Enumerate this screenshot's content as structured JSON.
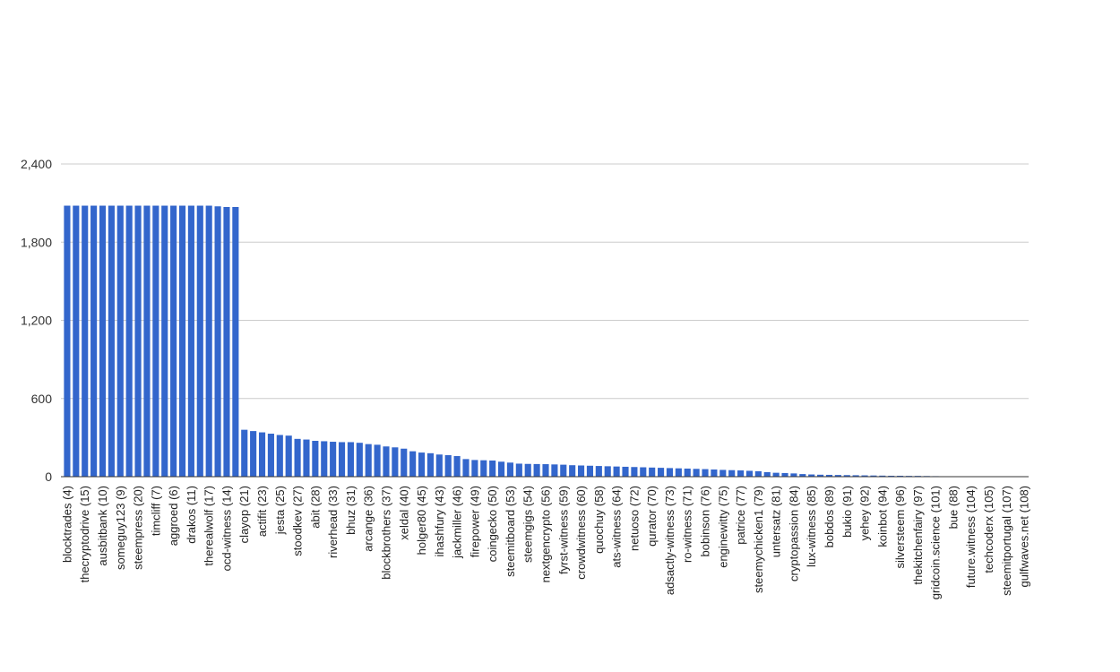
{
  "chart_data": {
    "type": "bar",
    "ylim": [
      0,
      2400
    ],
    "y_ticks": [
      0,
      600,
      1200,
      1800,
      2400
    ],
    "y_tick_labels": [
      "0",
      "600",
      "1,200",
      "1,800",
      "2,400"
    ],
    "grid": true,
    "legend": "none",
    "bar_color": "#3366cc",
    "categories": [
      {
        "label": "blocktrades (4)",
        "value": 2080,
        "show_label": true
      },
      {
        "label": "",
        "value": 2080,
        "show_label": false
      },
      {
        "label": "thecryptodrive (15)",
        "value": 2080,
        "show_label": true
      },
      {
        "label": "",
        "value": 2080,
        "show_label": false
      },
      {
        "label": "ausbitbank (10)",
        "value": 2080,
        "show_label": true
      },
      {
        "label": "",
        "value": 2080,
        "show_label": false
      },
      {
        "label": "someguy123 (9)",
        "value": 2080,
        "show_label": true
      },
      {
        "label": "",
        "value": 2080,
        "show_label": false
      },
      {
        "label": "steempress (20)",
        "value": 2080,
        "show_label": true
      },
      {
        "label": "",
        "value": 2080,
        "show_label": false
      },
      {
        "label": "timcliff (7)",
        "value": 2080,
        "show_label": true
      },
      {
        "label": "",
        "value": 2080,
        "show_label": false
      },
      {
        "label": "aggroed (6)",
        "value": 2080,
        "show_label": true
      },
      {
        "label": "",
        "value": 2080,
        "show_label": false
      },
      {
        "label": "drakos (11)",
        "value": 2080,
        "show_label": true
      },
      {
        "label": "",
        "value": 2080,
        "show_label": false
      },
      {
        "label": "therealwolf (17)",
        "value": 2080,
        "show_label": true
      },
      {
        "label": "",
        "value": 2075,
        "show_label": false
      },
      {
        "label": "ocd-witness (14)",
        "value": 2070,
        "show_label": true
      },
      {
        "label": "",
        "value": 2070,
        "show_label": false
      },
      {
        "label": "clayop (21)",
        "value": 360,
        "show_label": true
      },
      {
        "label": "",
        "value": 350,
        "show_label": false
      },
      {
        "label": "actifit (23)",
        "value": 340,
        "show_label": true
      },
      {
        "label": "",
        "value": 330,
        "show_label": false
      },
      {
        "label": "jesta (25)",
        "value": 320,
        "show_label": true
      },
      {
        "label": "",
        "value": 315,
        "show_label": false
      },
      {
        "label": "stoodkev (27)",
        "value": 290,
        "show_label": true
      },
      {
        "label": "",
        "value": 285,
        "show_label": false
      },
      {
        "label": "abit (28)",
        "value": 275,
        "show_label": true
      },
      {
        "label": "",
        "value": 272,
        "show_label": false
      },
      {
        "label": "riverhead (33)",
        "value": 268,
        "show_label": true
      },
      {
        "label": "",
        "value": 265,
        "show_label": false
      },
      {
        "label": "bhuz (31)",
        "value": 265,
        "show_label": true
      },
      {
        "label": "",
        "value": 260,
        "show_label": false
      },
      {
        "label": "arcange (36)",
        "value": 250,
        "show_label": true
      },
      {
        "label": "",
        "value": 245,
        "show_label": false
      },
      {
        "label": "blockbrothers (37)",
        "value": 232,
        "show_label": true
      },
      {
        "label": "",
        "value": 225,
        "show_label": false
      },
      {
        "label": "xeldal (40)",
        "value": 215,
        "show_label": true
      },
      {
        "label": "",
        "value": 195,
        "show_label": false
      },
      {
        "label": "holger80 (45)",
        "value": 185,
        "show_label": true
      },
      {
        "label": "",
        "value": 180,
        "show_label": false
      },
      {
        "label": "ihashfury (43)",
        "value": 170,
        "show_label": true
      },
      {
        "label": "",
        "value": 165,
        "show_label": false
      },
      {
        "label": "jackmiller (46)",
        "value": 158,
        "show_label": true
      },
      {
        "label": "",
        "value": 135,
        "show_label": false
      },
      {
        "label": "firepower (49)",
        "value": 128,
        "show_label": true
      },
      {
        "label": "",
        "value": 126,
        "show_label": false
      },
      {
        "label": "coingecko (50)",
        "value": 124,
        "show_label": true
      },
      {
        "label": "",
        "value": 115,
        "show_label": false
      },
      {
        "label": "steemitboard (53)",
        "value": 108,
        "show_label": true
      },
      {
        "label": "",
        "value": 100,
        "show_label": false
      },
      {
        "label": "steemgigs (54)",
        "value": 98,
        "show_label": true
      },
      {
        "label": "",
        "value": 97,
        "show_label": false
      },
      {
        "label": "nextgencrypto (56)",
        "value": 96,
        "show_label": true
      },
      {
        "label": "",
        "value": 94,
        "show_label": false
      },
      {
        "label": "fyrst-witness (59)",
        "value": 92,
        "show_label": true
      },
      {
        "label": "",
        "value": 88,
        "show_label": false
      },
      {
        "label": "crowdwitness (60)",
        "value": 86,
        "show_label": true
      },
      {
        "label": "",
        "value": 84,
        "show_label": false
      },
      {
        "label": "quochuy (58)",
        "value": 82,
        "show_label": true
      },
      {
        "label": "",
        "value": 80,
        "show_label": false
      },
      {
        "label": "ats-witness (64)",
        "value": 78,
        "show_label": true
      },
      {
        "label": "",
        "value": 76,
        "show_label": false
      },
      {
        "label": "netuoso (72)",
        "value": 74,
        "show_label": true
      },
      {
        "label": "",
        "value": 72,
        "show_label": false
      },
      {
        "label": "qurator (70)",
        "value": 70,
        "show_label": true
      },
      {
        "label": "",
        "value": 68,
        "show_label": false
      },
      {
        "label": "adsactly-witness (73)",
        "value": 66,
        "show_label": true
      },
      {
        "label": "",
        "value": 64,
        "show_label": false
      },
      {
        "label": "ro-witness (71)",
        "value": 62,
        "show_label": true
      },
      {
        "label": "",
        "value": 60,
        "show_label": false
      },
      {
        "label": "bobinson (76)",
        "value": 58,
        "show_label": true
      },
      {
        "label": "",
        "value": 55,
        "show_label": false
      },
      {
        "label": "enginewitty (75)",
        "value": 52,
        "show_label": true
      },
      {
        "label": "",
        "value": 50,
        "show_label": false
      },
      {
        "label": "patrice (77)",
        "value": 48,
        "show_label": true
      },
      {
        "label": "",
        "value": 45,
        "show_label": false
      },
      {
        "label": "steemychicken1 (79)",
        "value": 42,
        "show_label": true
      },
      {
        "label": "",
        "value": 35,
        "show_label": false
      },
      {
        "label": "untersatz (81)",
        "value": 30,
        "show_label": true
      },
      {
        "label": "",
        "value": 28,
        "show_label": false
      },
      {
        "label": "cryptopassion (84)",
        "value": 25,
        "show_label": true
      },
      {
        "label": "",
        "value": 20,
        "show_label": false
      },
      {
        "label": "lux-witness (85)",
        "value": 17,
        "show_label": true
      },
      {
        "label": "",
        "value": 15,
        "show_label": false
      },
      {
        "label": "bobdos (89)",
        "value": 14,
        "show_label": true
      },
      {
        "label": "",
        "value": 13,
        "show_label": false
      },
      {
        "label": "bukio (91)",
        "value": 12,
        "show_label": true
      },
      {
        "label": "",
        "value": 11,
        "show_label": false
      },
      {
        "label": "yehey (92)",
        "value": 10,
        "show_label": true
      },
      {
        "label": "",
        "value": 9,
        "show_label": false
      },
      {
        "label": "koinbot (94)",
        "value": 8,
        "show_label": true
      },
      {
        "label": "",
        "value": 7,
        "show_label": false
      },
      {
        "label": "silversteem (96)",
        "value": 7,
        "show_label": true
      },
      {
        "label": "",
        "value": 6,
        "show_label": false
      },
      {
        "label": "thekitchenfairy (97)",
        "value": 6,
        "show_label": true
      },
      {
        "label": "",
        "value": 5,
        "show_label": false
      },
      {
        "label": "gridcoin.science (101)",
        "value": 4,
        "show_label": true
      },
      {
        "label": "",
        "value": 3,
        "show_label": false
      },
      {
        "label": "bue (88)",
        "value": 3,
        "show_label": true
      },
      {
        "label": "",
        "value": 2,
        "show_label": false
      },
      {
        "label": "future.witness (104)",
        "value": 1,
        "show_label": true
      },
      {
        "label": "",
        "value": 1,
        "show_label": false
      },
      {
        "label": "techcoderx (105)",
        "value": 1,
        "show_label": true
      },
      {
        "label": "",
        "value": 1,
        "show_label": false
      },
      {
        "label": "steemitportugal (107)",
        "value": 0,
        "show_label": true
      },
      {
        "label": "",
        "value": 0,
        "show_label": false
      },
      {
        "label": "gulfwaves.net (108)",
        "value": 0,
        "show_label": true
      }
    ]
  }
}
